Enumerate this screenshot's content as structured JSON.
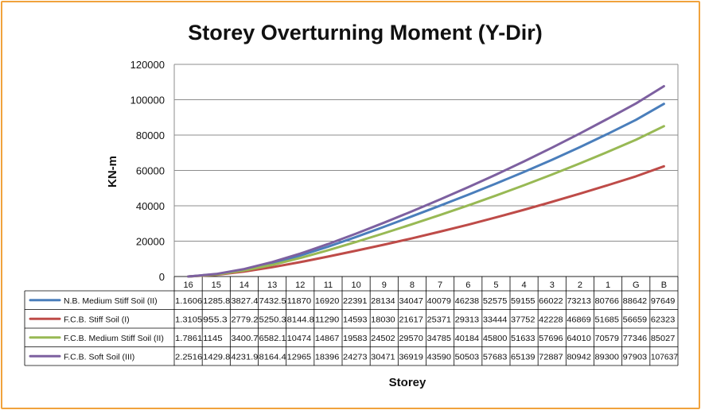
{
  "chart_data": {
    "type": "line",
    "title": "Storey Overturning Moment (Y-Dir)",
    "xlabel": "Storey",
    "ylabel": "KN-m",
    "ylim": [
      0,
      120000
    ],
    "yticks": [
      "0",
      "20000",
      "40000",
      "60000",
      "80000",
      "100000",
      "120000"
    ],
    "grid": "horizontal",
    "categories": [
      "16",
      "15",
      "14",
      "13",
      "12",
      "11",
      "10",
      "9",
      "8",
      "7",
      "6",
      "5",
      "4",
      "3",
      "2",
      "1",
      "G",
      "B"
    ],
    "series": [
      {
        "name": "N.B. Medium Stiff Soil (II)",
        "color": "#4a7ebb",
        "values": [
          1.1606,
          1285.8,
          3827.4,
          7432.5,
          11870,
          16920,
          22391,
          28134,
          34047,
          40079,
          46238,
          52575,
          59155,
          66022,
          73213,
          80766,
          88642,
          97649
        ],
        "labels": [
          "1.1606",
          "1285.8",
          "3827.4",
          "7432.5",
          "11870",
          "16920",
          "22391",
          "28134",
          "34047",
          "40079",
          "46238",
          "52575",
          "59155",
          "66022",
          "73213",
          "80766",
          "88642",
          "97649"
        ]
      },
      {
        "name": "F.C.B. Stiff Soil (I)",
        "color": "#be4b48",
        "values": [
          1.3105,
          955.3,
          2779.2,
          5250.3,
          8144.8,
          11290,
          14593,
          18030,
          21617,
          25371,
          29313,
          33444,
          37752,
          42228,
          46869,
          51685,
          56659,
          62323
        ],
        "labels": [
          "1.3105",
          "955.3",
          "2779.2",
          "5250.3",
          "8144.8",
          "11290",
          "14593",
          "18030",
          "21617",
          "25371",
          "29313",
          "33444",
          "37752",
          "42228",
          "46869",
          "51685",
          "56659",
          "62323"
        ]
      },
      {
        "name": "F.C.B. Medium Stiff Soil (II)",
        "color": "#98b954",
        "values": [
          1.7861,
          1145,
          3400.7,
          6582.1,
          10474,
          14867,
          19583,
          24502,
          29570,
          34785,
          40184,
          45800,
          51633,
          57696,
          64010,
          70579,
          77346,
          85027
        ],
        "labels": [
          "1.7861",
          "1145",
          "3400.7",
          "6582.1",
          "10474",
          "14867",
          "19583",
          "24502",
          "29570",
          "34785",
          "40184",
          "45800",
          "51633",
          "57696",
          "64010",
          "70579",
          "77346",
          "85027"
        ]
      },
      {
        "name": "F.C.B. Soft Soil (III)",
        "color": "#7d60a0",
        "values": [
          2.2516,
          1429.8,
          4231.9,
          8164.4,
          12965,
          18396,
          24273,
          30471,
          36919,
          43590,
          50503,
          57683,
          65139,
          72887,
          80942,
          89300,
          97903,
          107637
        ],
        "labels": [
          "2.2516",
          "1429.8",
          "4231.9",
          "8164.4",
          "12965",
          "18396",
          "24273",
          "30471",
          "36919",
          "43590",
          "50503",
          "57683",
          "65139",
          "72887",
          "80942",
          "89300",
          "97903",
          "107637"
        ]
      }
    ]
  }
}
